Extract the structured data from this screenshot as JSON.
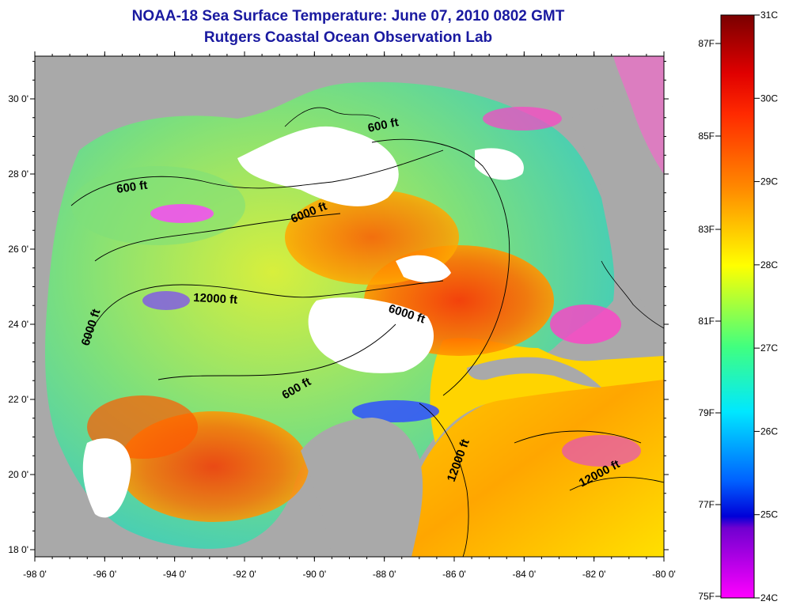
{
  "title": "NOAA-18 Sea Surface Temperature:  June 07, 2010 0802 GMT",
  "subtitle": "Rutgers Coastal Ocean Observation Lab",
  "map": {
    "lon_ticks": [
      "-98 0'",
      "-96 0'",
      "-94 0'",
      "-92 0'",
      "-90 0'",
      "-88 0'",
      "-86 0'",
      "-84 0'",
      "-82 0'",
      "-80 0'"
    ],
    "lat_ticks": [
      "30 0'",
      "28 0'",
      "26 0'",
      "24 0'",
      "22 0'",
      "20 0'",
      "18 0'"
    ],
    "contour_labels": [
      "600 ft",
      "600 ft",
      "6000 ft",
      "12000 ft",
      "6000 ft",
      "6000 ft",
      "600 ft",
      "12000 ft",
      "12000 ft"
    ],
    "land_color": "#a9a9a9",
    "cloud_color": "#ffffff"
  },
  "colorbar": {
    "celsius_labels": [
      "31C",
      "30C",
      "29C",
      "28C",
      "27C",
      "26C",
      "25C",
      "24C"
    ],
    "fahrenheit_labels": [
      "87F",
      "85F",
      "83F",
      "81F",
      "79F",
      "77F",
      "75F"
    ],
    "colors": [
      "#8b0000",
      "#ff2000",
      "#ff8c00",
      "#ffff00",
      "#00ffff",
      "#0000ff",
      "#ff00ff"
    ]
  }
}
